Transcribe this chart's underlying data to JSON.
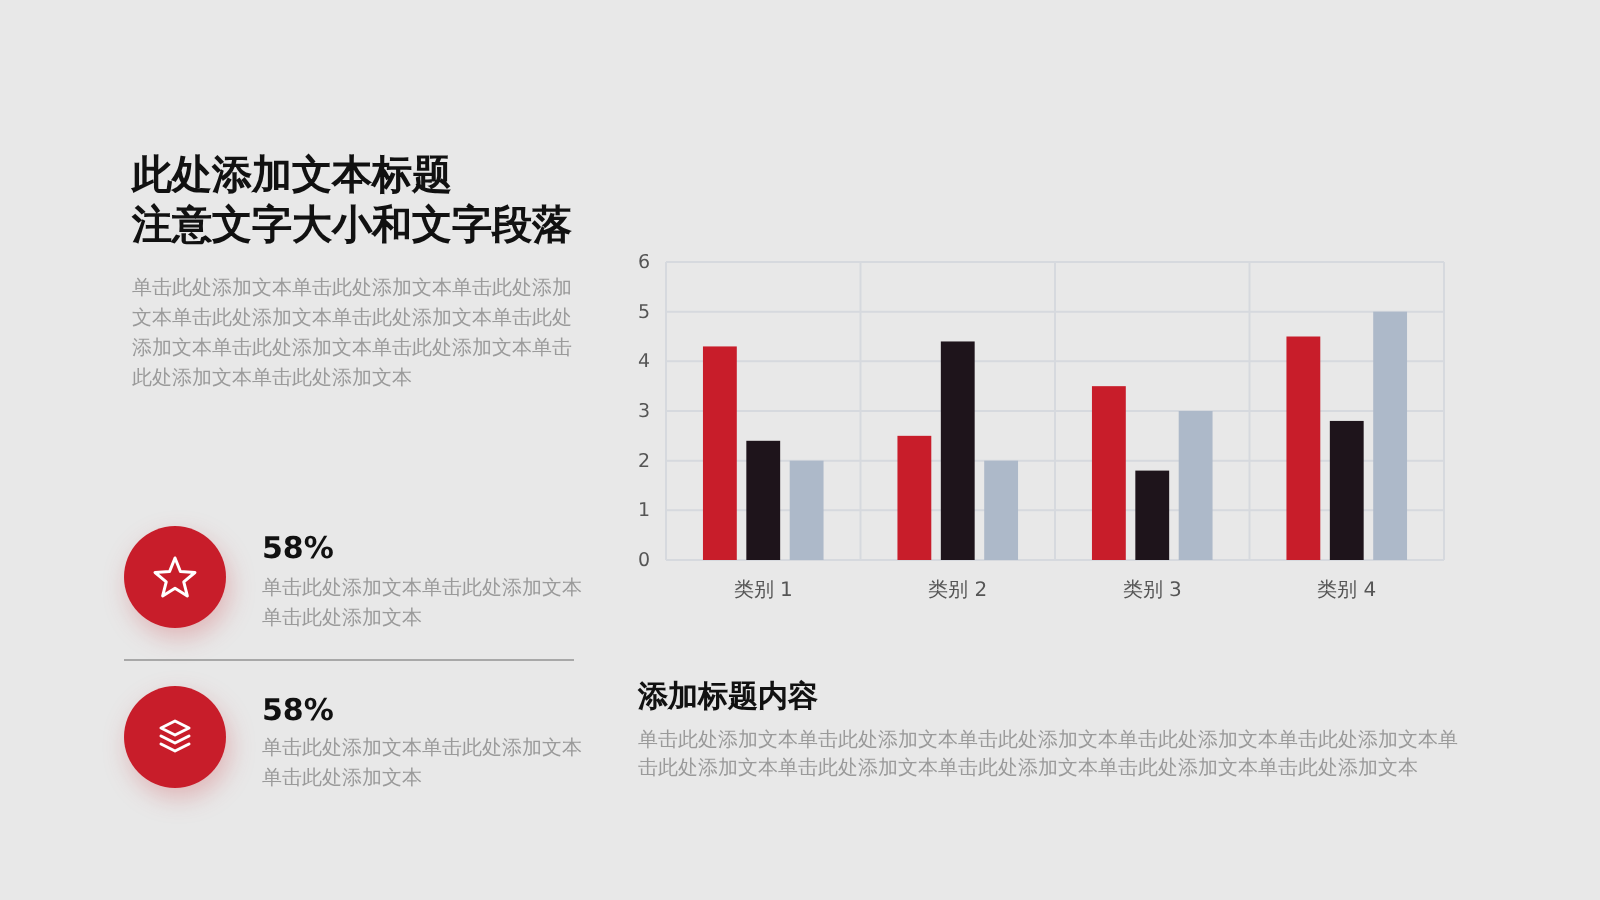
{
  "chart_data": {
    "type": "bar",
    "title": "此处添加文本标题",
    "subtitle": "注意文字大小和文字段落",
    "categories": [
      "类别 1",
      "类别 2",
      "类别 3",
      "类别 4"
    ],
    "series": [
      {
        "color": "#c81d2a",
        "values": [
          4.3,
          2.5,
          3.5,
          4.5
        ]
      },
      {
        "color": "#1e141b",
        "values": [
          2.4,
          4.4,
          1.8,
          2.8
        ]
      },
      {
        "color": "#adb9c9",
        "values": [
          2.0,
          2.0,
          3.0,
          5.0
        ]
      }
    ],
    "ylim": [
      0,
      6
    ],
    "yticks": [
      0,
      1,
      2,
      3,
      4,
      5,
      6
    ],
    "grid": true,
    "annotations": [
      "单击此处添加文本单击此处添加文本单击此处添加文本单击此处添加文本单击此处添加文本单击此处添加文本单击此处添加文本单击此处添加文本单击此处添加文本单击此处添加文本",
      "58%",
      "单击此处添加文本单击此处添加文本单击此处添加文本",
      "58%",
      "单击此处添加文本单击此处添加文本单击此处添加文本",
      "添加标题内容",
      "单击此处添加文本单击此处添加文本单击此处添加文本单击此处添加文本单击此处添加文本单击此处添加文本单击此处添加文本单击此处添加文本单击此处添加文本单击此处添加文本"
    ]
  }
}
